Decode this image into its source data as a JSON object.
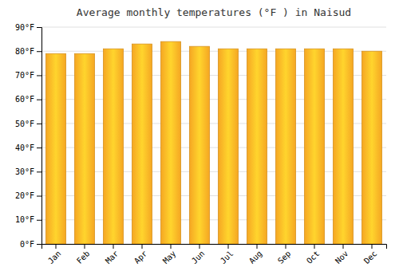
{
  "chart_data": {
    "type": "bar",
    "title": "Average monthly temperatures (°F ) in Naisud",
    "categories": [
      "Jan",
      "Feb",
      "Mar",
      "Apr",
      "May",
      "Jun",
      "Jul",
      "Aug",
      "Sep",
      "Oct",
      "Nov",
      "Dec"
    ],
    "values": [
      79,
      79,
      81,
      83,
      84,
      82,
      81,
      81,
      81,
      81,
      81,
      80
    ],
    "color": "#F5A623",
    "ylim": [
      0,
      90
    ],
    "yticks": [
      {
        "value": 0,
        "label": "0°F"
      },
      {
        "value": 10,
        "label": "10°F"
      },
      {
        "value": 20,
        "label": "20°F"
      },
      {
        "value": 30,
        "label": "30°F"
      },
      {
        "value": 40,
        "label": "40°F"
      },
      {
        "value": 50,
        "label": "50°F"
      },
      {
        "value": 60,
        "label": "60°F"
      },
      {
        "value": 70,
        "label": "70°F"
      },
      {
        "value": 80,
        "label": "80°F"
      },
      {
        "value": 90,
        "label": "90°F"
      }
    ],
    "grid": true
  }
}
